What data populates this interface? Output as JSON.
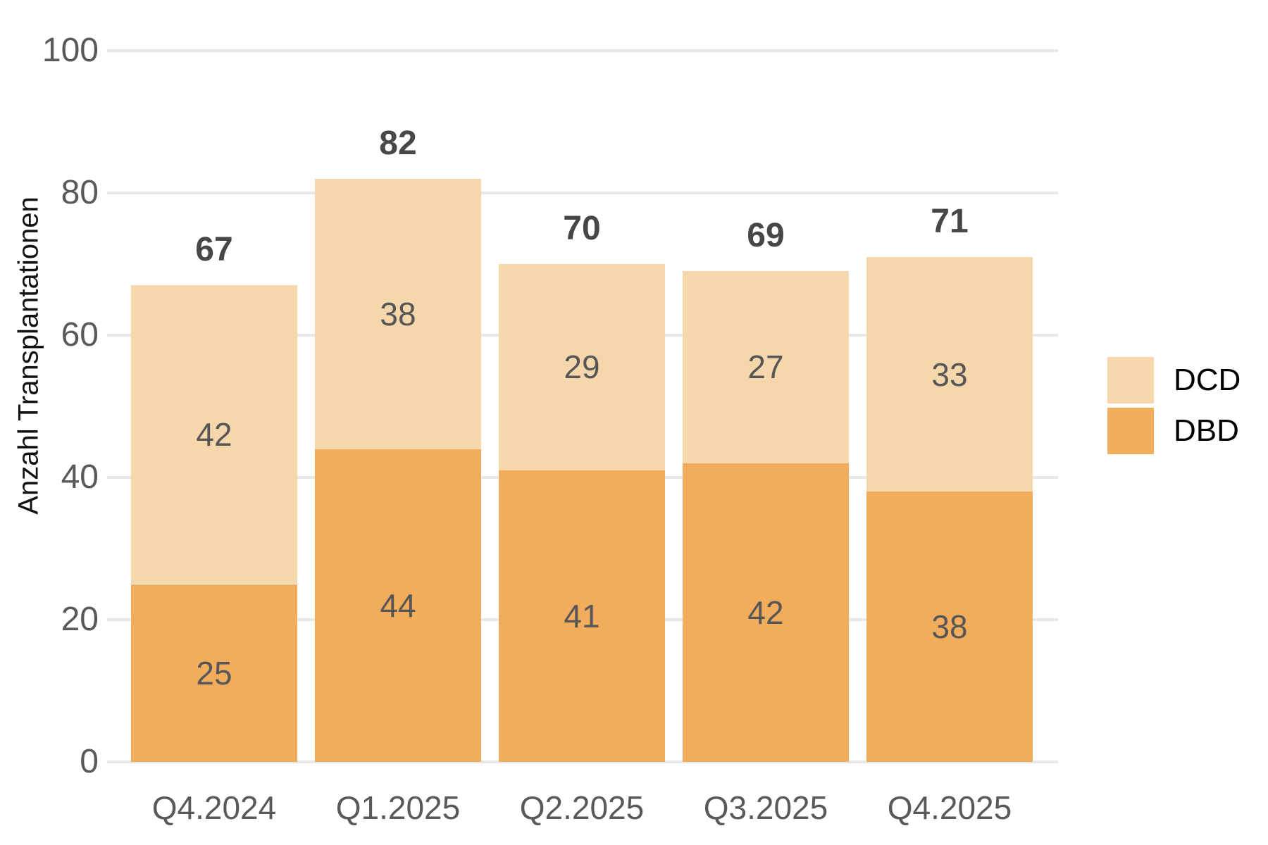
{
  "chart_data": {
    "type": "bar",
    "stacked": true,
    "title": "",
    "xlabel": "",
    "ylabel": "Anzahl Transplantationen",
    "categories": [
      "Q4.2024",
      "Q1.2025",
      "Q2.2025",
      "Q3.2025",
      "Q4.2025"
    ],
    "series": [
      {
        "name": "DBD",
        "color": "#F2AD5C",
        "values": [
          25,
          44,
          41,
          42,
          38
        ]
      },
      {
        "name": "DCD",
        "color": "#F6D7AC",
        "values": [
          42,
          38,
          29,
          27,
          33
        ]
      }
    ],
    "totals": [
      67,
      82,
      70,
      69,
      71
    ],
    "y_ticks": [
      0,
      20,
      40,
      60,
      80,
      100
    ],
    "ylim": [
      0,
      100
    ],
    "grid": true,
    "gridline_color": "#E8E8E8",
    "legend_position": "right",
    "legend_items": [
      {
        "label": "DCD",
        "color": "#F6D7AC"
      },
      {
        "label": "DBD",
        "color": "#F2AD5C"
      }
    ],
    "text_colors": {
      "ticks": "#595959",
      "segment_labels": "#565656",
      "total_labels": "#474747",
      "axis_title": "#111111",
      "legend": "#000000"
    }
  }
}
